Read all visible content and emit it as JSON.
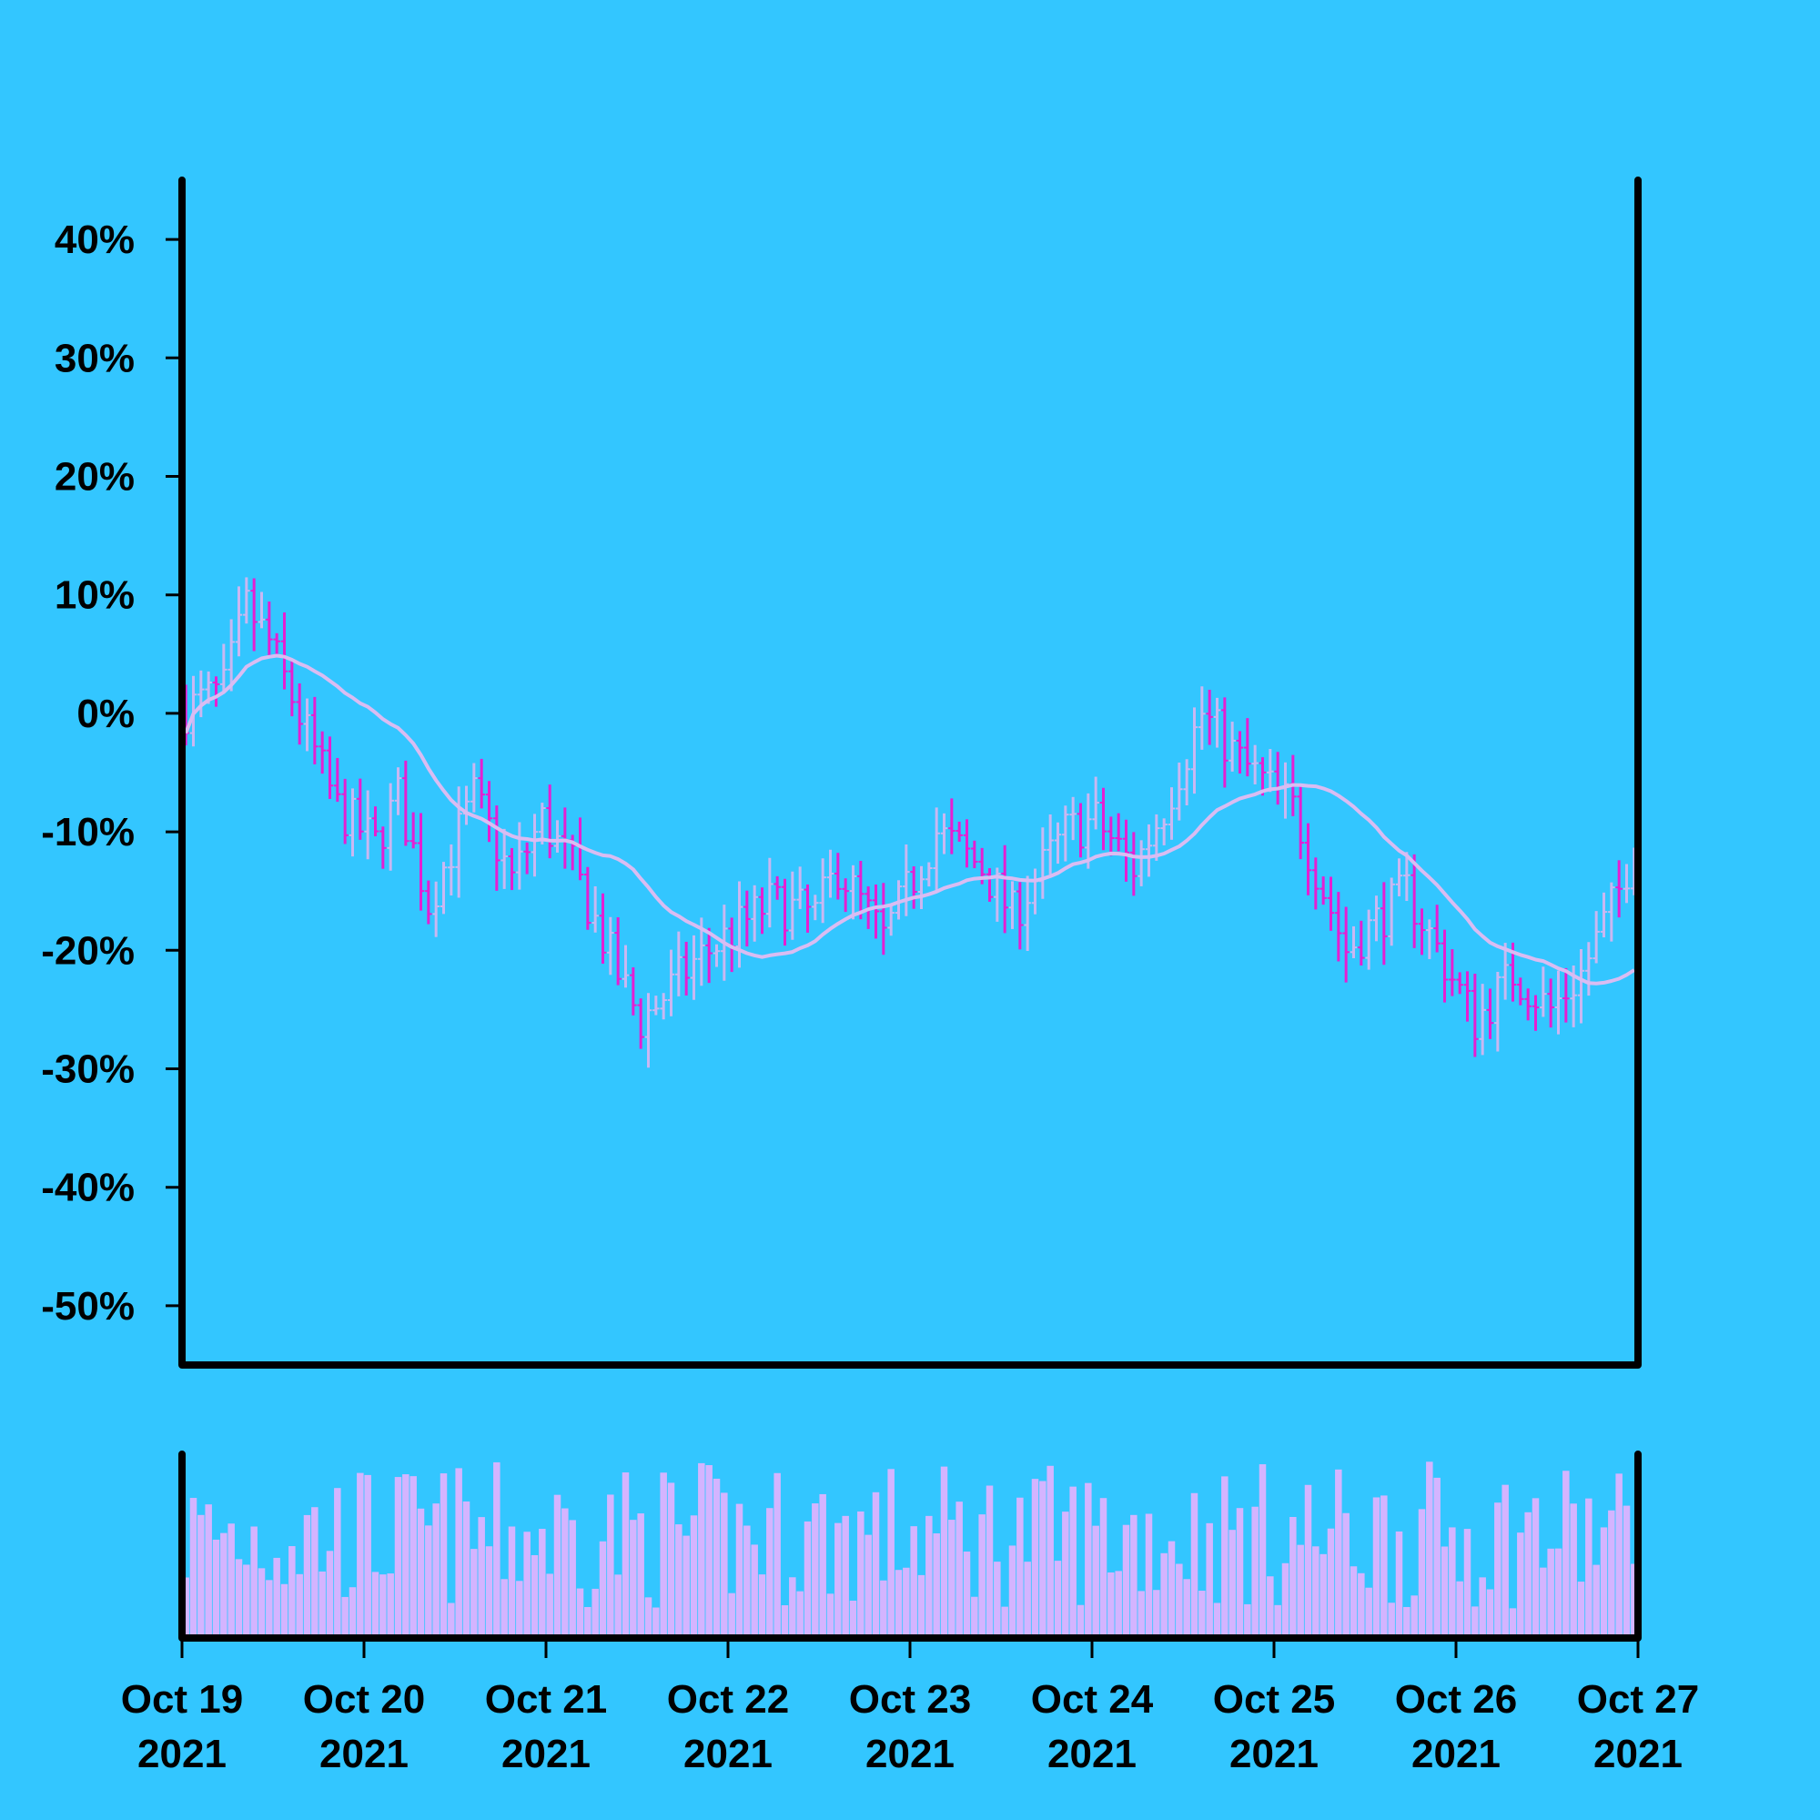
{
  "colors": {
    "background": "#33c6ff",
    "up": "#c9b7f2",
    "down": "#e61ed2",
    "moving_average": "#d9bcf2",
    "volume": "#d4b4ff",
    "axis": "#000000"
  },
  "chart_data": {
    "type": "ohlc",
    "x_range": [
      "2021-10-19",
      "2021-10-27"
    ],
    "x_ticks": [
      {
        "date": "2021-10-19",
        "line1": "Oct 19",
        "line2": "2021"
      },
      {
        "date": "2021-10-20",
        "line1": "Oct 20",
        "line2": "2021"
      },
      {
        "date": "2021-10-21",
        "line1": "Oct 21",
        "line2": "2021"
      },
      {
        "date": "2021-10-22",
        "line1": "Oct 22",
        "line2": "2021"
      },
      {
        "date": "2021-10-23",
        "line1": "Oct 23",
        "line2": "2021"
      },
      {
        "date": "2021-10-24",
        "line1": "Oct 24",
        "line2": "2021"
      },
      {
        "date": "2021-10-25",
        "line1": "Oct 25",
        "line2": "2021"
      },
      {
        "date": "2021-10-26",
        "line1": "Oct 26",
        "line2": "2021"
      },
      {
        "date": "2021-10-27",
        "line1": "Oct 27",
        "line2": "2021"
      }
    ],
    "y_range": [
      -55,
      45
    ],
    "y_ticks": [
      {
        "value": 40,
        "label": "40%"
      },
      {
        "value": 30,
        "label": "30%"
      },
      {
        "value": 20,
        "label": "20%"
      },
      {
        "value": 10,
        "label": "10%"
      },
      {
        "value": 0,
        "label": "0%"
      },
      {
        "value": -10,
        "label": "-10%"
      },
      {
        "value": -20,
        "label": "-20%"
      },
      {
        "value": -30,
        "label": "-30%"
      },
      {
        "value": -40,
        "label": "-40%"
      },
      {
        "value": -50,
        "label": "-50%"
      }
    ],
    "price_anchors": [
      {
        "t": "2021-10-19 00:00",
        "v": 0
      },
      {
        "t": "2021-10-19 06:00",
        "v": 2
      },
      {
        "t": "2021-10-19 09:00",
        "v": 9
      },
      {
        "t": "2021-10-19 12:00",
        "v": 6
      },
      {
        "t": "2021-10-19 21:00",
        "v": -8
      },
      {
        "t": "2021-10-20 02:00",
        "v": -11
      },
      {
        "t": "2021-10-20 05:00",
        "v": -7
      },
      {
        "t": "2021-10-20 09:00",
        "v": -16
      },
      {
        "t": "2021-10-20 15:00",
        "v": -7
      },
      {
        "t": "2021-10-20 20:00",
        "v": -14
      },
      {
        "t": "2021-10-21 00:00",
        "v": -9
      },
      {
        "t": "2021-10-21 04:00",
        "v": -13
      },
      {
        "t": "2021-10-21 10:00",
        "v": -22
      },
      {
        "t": "2021-10-21 13:00",
        "v": -26
      },
      {
        "t": "2021-10-21 20:00",
        "v": -21
      },
      {
        "t": "2021-10-22 06:00",
        "v": -16
      },
      {
        "t": "2021-10-22 12:00",
        "v": -17
      },
      {
        "t": "2021-10-22 15:00",
        "v": -13
      },
      {
        "t": "2021-10-22 21:00",
        "v": -19
      },
      {
        "t": "2021-10-23 04:00",
        "v": -10
      },
      {
        "t": "2021-10-23 10:00",
        "v": -13
      },
      {
        "t": "2021-10-23 14:00",
        "v": -17
      },
      {
        "t": "2021-10-23 21:00",
        "v": -10
      },
      {
        "t": "2021-10-24 01:00",
        "v": -9
      },
      {
        "t": "2021-10-24 06:00",
        "v": -13
      },
      {
        "t": "2021-10-24 10:00",
        "v": -8
      },
      {
        "t": "2021-10-24 15:00",
        "v": 0
      },
      {
        "t": "2021-10-24 20:00",
        "v": -4
      },
      {
        "t": "2021-10-25 03:00",
        "v": -8
      },
      {
        "t": "2021-10-25 10:00",
        "v": -20
      },
      {
        "t": "2021-10-25 18:00",
        "v": -15
      },
      {
        "t": "2021-10-26 03:00",
        "v": -26
      },
      {
        "t": "2021-10-26 08:00",
        "v": -22
      },
      {
        "t": "2021-10-26 13:00",
        "v": -25
      },
      {
        "t": "2021-10-26 17:00",
        "v": -22
      },
      {
        "t": "2021-10-26 22:00",
        "v": -15
      },
      {
        "t": "2021-10-27 00:00",
        "v": -11
      }
    ],
    "bar_interval_hours": 1,
    "moving_average_window": 24,
    "volume_panel": {
      "show_axis_labels": false
    },
    "grid": false,
    "legend": "none"
  }
}
